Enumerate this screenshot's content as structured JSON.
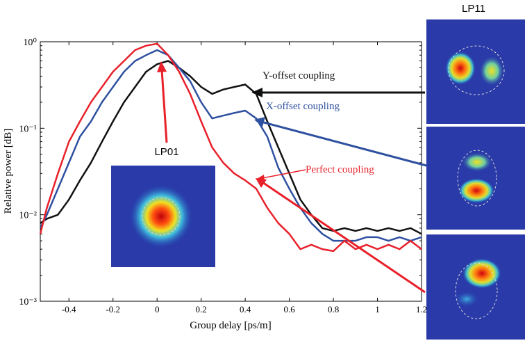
{
  "chart_data": {
    "type": "line",
    "xlabel": "Group delay [ps/m]",
    "ylabel": "Relative power [dB]",
    "log_y": true,
    "xlim": [
      -0.53,
      1.2
    ],
    "ylim": [
      0.001,
      1
    ],
    "xticks": [
      -0.4,
      -0.2,
      0,
      0.2,
      0.4,
      0.6,
      0.8,
      1,
      1.2
    ],
    "yticks": [
      {
        "value": 0.001,
        "label": "10⁻³"
      },
      {
        "value": 0.01,
        "label": "10⁻²"
      },
      {
        "value": 0.1,
        "label": "10⁻¹"
      },
      {
        "value": 1,
        "label": "10⁰"
      }
    ],
    "x": [
      -0.53,
      -0.5,
      -0.45,
      -0.4,
      -0.35,
      -0.3,
      -0.25,
      -0.2,
      -0.15,
      -0.1,
      -0.05,
      0,
      0.05,
      0.1,
      0.15,
      0.2,
      0.25,
      0.3,
      0.35,
      0.4,
      0.45,
      0.5,
      0.55,
      0.6,
      0.65,
      0.7,
      0.75,
      0.8,
      0.85,
      0.9,
      0.95,
      1,
      1.05,
      1.1,
      1.15,
      1.2
    ],
    "series": [
      {
        "name": "Perfect coupling",
        "color": "#e8202a",
        "values": [
          0.006,
          0.012,
          0.03,
          0.07,
          0.12,
          0.2,
          0.3,
          0.45,
          0.6,
          0.8,
          0.9,
          0.95,
          0.7,
          0.45,
          0.25,
          0.12,
          0.06,
          0.04,
          0.03,
          0.025,
          0.02,
          0.012,
          0.008,
          0.006,
          0.004,
          0.0045,
          0.004,
          0.0038,
          0.005,
          0.004,
          0.0045,
          0.004,
          0.0045,
          0.004,
          0.005,
          0.004
        ]
      },
      {
        "name": "X-offset coupling",
        "color": "#2e50a0",
        "values": [
          0.007,
          0.01,
          0.02,
          0.04,
          0.08,
          0.12,
          0.2,
          0.3,
          0.45,
          0.6,
          0.7,
          0.8,
          0.7,
          0.5,
          0.35,
          0.2,
          0.13,
          0.14,
          0.15,
          0.16,
          0.13,
          0.08,
          0.035,
          0.02,
          0.012,
          0.008,
          0.006,
          0.005,
          0.005,
          0.005,
          0.0055,
          0.0055,
          0.005,
          0.0055,
          0.005,
          0.0055
        ]
      },
      {
        "name": "Y-offset coupling",
        "color": "#111111",
        "values": [
          0.008,
          0.009,
          0.01,
          0.015,
          0.025,
          0.04,
          0.07,
          0.12,
          0.2,
          0.3,
          0.45,
          0.55,
          0.6,
          0.5,
          0.4,
          0.3,
          0.25,
          0.28,
          0.3,
          0.32,
          0.25,
          0.12,
          0.06,
          0.03,
          0.015,
          0.01,
          0.007,
          0.0065,
          0.007,
          0.0065,
          0.007,
          0.0065,
          0.007,
          0.0065,
          0.007,
          0.006
        ]
      }
    ],
    "annotations": [
      "LP01",
      "LP11"
    ]
  }
}
